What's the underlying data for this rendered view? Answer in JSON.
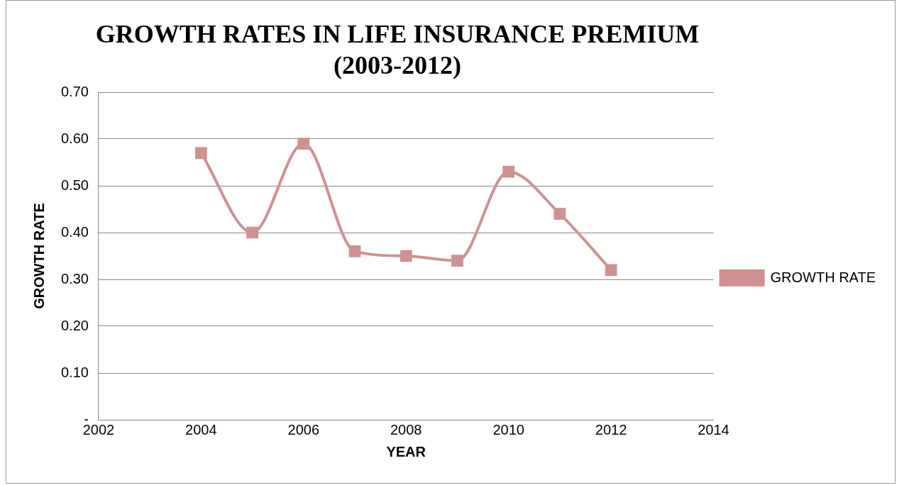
{
  "chart_data": {
    "type": "line",
    "title": "GROWTH RATES IN LIFE INSURANCE PREMIUM (2003-2012)",
    "xlabel": "YEAR",
    "ylabel": "GROWTH RATE",
    "x": [
      2004,
      2005,
      2006,
      2007,
      2008,
      2009,
      2010,
      2011,
      2012
    ],
    "series": [
      {
        "name": "GROWTH RATE",
        "color": "#d09191",
        "values": [
          0.57,
          0.4,
          0.59,
          0.36,
          0.35,
          0.34,
          0.53,
          0.44,
          0.32
        ]
      }
    ],
    "xlim": [
      2002,
      2014
    ],
    "xticks": [
      2002,
      2004,
      2006,
      2008,
      2010,
      2012,
      2014
    ],
    "ylim": [
      0,
      0.7
    ],
    "yticks": [
      {
        "value": 0,
        "label": "-"
      },
      {
        "value": 0.1,
        "label": "0.10"
      },
      {
        "value": 0.2,
        "label": "0.20"
      },
      {
        "value": 0.3,
        "label": "0.30"
      },
      {
        "value": 0.4,
        "label": "0.40"
      },
      {
        "value": 0.5,
        "label": "0.50"
      },
      {
        "value": 0.6,
        "label": "0.60"
      },
      {
        "value": 0.7,
        "label": "0.70"
      }
    ],
    "grid": "y",
    "legend": "right",
    "marker": "square",
    "line_style": "solid"
  }
}
